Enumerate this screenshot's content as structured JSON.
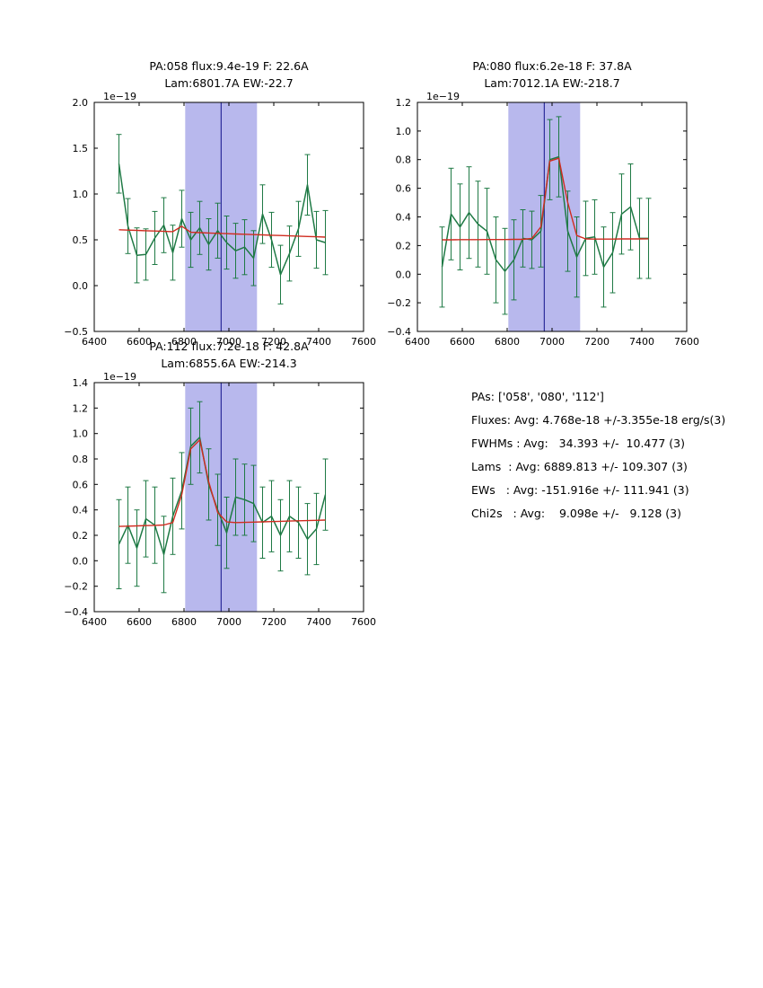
{
  "colors": {
    "data": "#1f7a45",
    "fit": "#d02c20",
    "band": "#b8b8ed",
    "vline": "#10108a",
    "axis": "#000000"
  },
  "chart_data": [
    {
      "id": "pa058",
      "type": "line",
      "title1": "PA:058 flux:9.4e-19 F: 22.6A",
      "title2": "Lam:6801.7A EW:-22.7",
      "offset": "1e−19",
      "xlim": [
        6400,
        7600
      ],
      "ylim": [
        -0.5,
        2.0
      ],
      "xticks": [
        6400,
        6600,
        6800,
        7000,
        7200,
        7400,
        7600
      ],
      "xticklabels": [
        "6400",
        "6600",
        "6800",
        "7000",
        "7200",
        "7400",
        "7600"
      ],
      "yticks": [
        -0.5,
        0.0,
        0.5,
        1.0,
        1.5,
        2.0
      ],
      "yticklabels": [
        "−0.5",
        "0.0",
        "0.5",
        "1.0",
        "1.5",
        "2.0"
      ],
      "band": [
        6805,
        7125
      ],
      "vline": 6965,
      "x": [
        6510,
        6550,
        6590,
        6630,
        6670,
        6710,
        6750,
        6790,
        6830,
        6870,
        6910,
        6950,
        6990,
        7030,
        7070,
        7110,
        7150,
        7190,
        7230,
        7270,
        7310,
        7350,
        7390,
        7430
      ],
      "y": [
        1.33,
        0.65,
        0.33,
        0.34,
        0.52,
        0.66,
        0.36,
        0.73,
        0.5,
        0.63,
        0.45,
        0.6,
        0.47,
        0.38,
        0.42,
        0.3,
        0.78,
        0.5,
        0.12,
        0.35,
        0.62,
        1.1,
        0.5,
        0.47
      ],
      "yerr": [
        0.32,
        0.3,
        0.3,
        0.28,
        0.29,
        0.3,
        0.3,
        0.31,
        0.3,
        0.29,
        0.28,
        0.3,
        0.29,
        0.3,
        0.3,
        0.3,
        0.32,
        0.3,
        0.32,
        0.3,
        0.3,
        0.33,
        0.31,
        0.35
      ],
      "fit_y": [
        0.61,
        0.606,
        0.603,
        0.599,
        0.596,
        0.592,
        0.589,
        0.648,
        0.582,
        0.578,
        0.575,
        0.571,
        0.568,
        0.564,
        0.561,
        0.557,
        0.554,
        0.55,
        0.547,
        0.543,
        0.54,
        0.536,
        0.533,
        0.529
      ]
    },
    {
      "id": "pa080",
      "type": "line",
      "title1": "PA:080 flux:6.2e-18 F: 37.8A",
      "title2": "Lam:7012.1A EW:-218.7",
      "offset": "1e−19",
      "xlim": [
        6400,
        7600
      ],
      "ylim": [
        -0.4,
        1.2
      ],
      "xticks": [
        6400,
        6600,
        6800,
        7000,
        7200,
        7400,
        7600
      ],
      "xticklabels": [
        "6400",
        "6600",
        "6800",
        "7000",
        "7200",
        "7400",
        "7600"
      ],
      "yticks": [
        -0.4,
        -0.2,
        0.0,
        0.2,
        0.4,
        0.6,
        0.8,
        1.0,
        1.2
      ],
      "yticklabels": [
        "−0.4",
        "−0.2",
        "0.0",
        "0.2",
        "0.4",
        "0.6",
        "0.8",
        "1.0",
        "1.2"
      ],
      "band": [
        6805,
        7125
      ],
      "vline": 6965,
      "x": [
        6510,
        6550,
        6590,
        6630,
        6670,
        6710,
        6750,
        6790,
        6830,
        6870,
        6910,
        6950,
        6990,
        7030,
        7070,
        7110,
        7150,
        7190,
        7230,
        7270,
        7310,
        7350,
        7390,
        7430
      ],
      "y": [
        0.05,
        0.42,
        0.33,
        0.43,
        0.35,
        0.3,
        0.1,
        0.02,
        0.1,
        0.25,
        0.24,
        0.3,
        0.8,
        0.82,
        0.3,
        0.12,
        0.25,
        0.26,
        0.05,
        0.15,
        0.42,
        0.47,
        0.25,
        0.25
      ],
      "yerr": [
        0.28,
        0.32,
        0.3,
        0.32,
        0.3,
        0.3,
        0.3,
        0.3,
        0.28,
        0.2,
        0.2,
        0.25,
        0.28,
        0.28,
        0.28,
        0.28,
        0.26,
        0.26,
        0.28,
        0.28,
        0.28,
        0.3,
        0.28,
        0.28
      ],
      "fit_y": [
        0.24,
        0.24,
        0.241,
        0.241,
        0.241,
        0.242,
        0.242,
        0.242,
        0.243,
        0.243,
        0.25,
        0.33,
        0.79,
        0.81,
        0.5,
        0.27,
        0.246,
        0.245,
        0.245,
        0.245,
        0.246,
        0.246,
        0.246,
        0.247
      ]
    },
    {
      "id": "pa112",
      "type": "line",
      "title1": "PA:112 flux:7.2e-18 F: 42.8A",
      "title2": "Lam:6855.6A EW:-214.3",
      "offset": "1e−19",
      "xlim": [
        6400,
        7600
      ],
      "ylim": [
        -0.4,
        1.4
      ],
      "xticks": [
        6400,
        6600,
        6800,
        7000,
        7200,
        7400,
        7600
      ],
      "xticklabels": [
        "6400",
        "6600",
        "6800",
        "7000",
        "7200",
        "7400",
        "7600"
      ],
      "yticks": [
        -0.4,
        -0.2,
        0.0,
        0.2,
        0.4,
        0.6,
        0.8,
        1.0,
        1.2,
        1.4
      ],
      "yticklabels": [
        "−0.4",
        "−0.2",
        "0.0",
        "0.2",
        "0.4",
        "0.6",
        "0.8",
        "1.0",
        "1.2",
        "1.4"
      ],
      "band": [
        6805,
        7125
      ],
      "vline": 6965,
      "x": [
        6510,
        6550,
        6590,
        6630,
        6670,
        6710,
        6750,
        6790,
        6830,
        6870,
        6910,
        6950,
        6990,
        7030,
        7070,
        7110,
        7150,
        7190,
        7230,
        7270,
        7310,
        7350,
        7390,
        7430
      ],
      "y": [
        0.13,
        0.28,
        0.1,
        0.33,
        0.28,
        0.05,
        0.35,
        0.55,
        0.9,
        0.97,
        0.6,
        0.4,
        0.22,
        0.5,
        0.48,
        0.45,
        0.3,
        0.35,
        0.2,
        0.35,
        0.3,
        0.17,
        0.25,
        0.52
      ],
      "yerr": [
        0.35,
        0.3,
        0.3,
        0.3,
        0.3,
        0.3,
        0.3,
        0.3,
        0.3,
        0.28,
        0.28,
        0.28,
        0.28,
        0.3,
        0.28,
        0.3,
        0.28,
        0.28,
        0.28,
        0.28,
        0.28,
        0.28,
        0.28,
        0.28
      ],
      "fit_y": [
        0.27,
        0.272,
        0.274,
        0.276,
        0.278,
        0.281,
        0.3,
        0.52,
        0.88,
        0.95,
        0.62,
        0.38,
        0.305,
        0.3,
        0.302,
        0.304,
        0.306,
        0.308,
        0.31,
        0.312,
        0.314,
        0.316,
        0.318,
        0.32
      ]
    }
  ],
  "summary": {
    "lines": [
      "PAs: ['058', '080', '112']",
      "Fluxes: Avg: 4.768e-18 +/-3.355e-18 erg/s(3)",
      "FWHMs : Avg:   34.393 +/-  10.477 (3)",
      "Lams  : Avg: 6889.813 +/- 109.307 (3)",
      "EWs   : Avg: -151.916e +/- 111.941 (3)",
      "Chi2s   : Avg:    9.098e +/-   9.128 (3)"
    ]
  }
}
